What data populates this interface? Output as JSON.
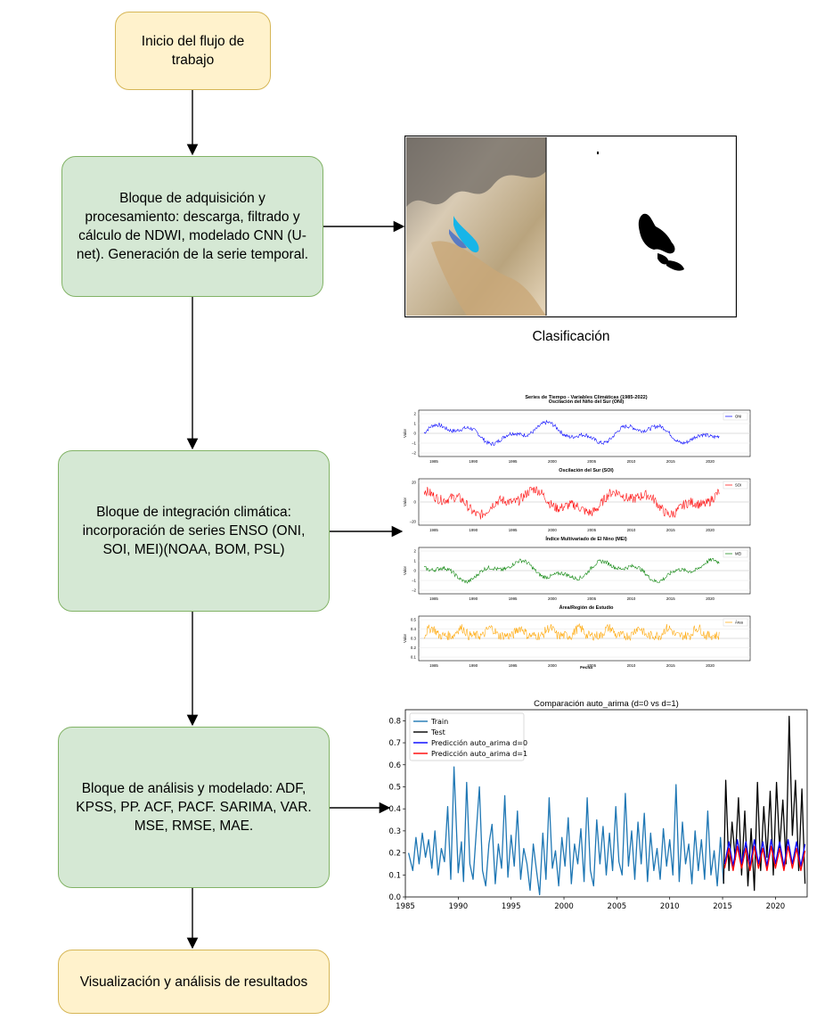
{
  "nodes": {
    "start": "Inicio del flujo de trabajo",
    "acquisition": "Bloque de adquisición y procesamiento: descarga, filtrado y cálculo de NDWI, modelado CNN (U-net). Generación de la serie temporal.",
    "climate": "Bloque de integración climática: incorporación de series ENSO (ONI, SOI, MEI)(NOAA, BOM, PSL)",
    "analysis": "Bloque de análisis y modelado: ADF, KPSS, PP. ACF, PACF. SARIMA, VAR. MSE, RMSE, MAE.",
    "results": "Visualización y análisis de resultados"
  },
  "classification": {
    "caption": "Clasificación"
  },
  "climate_figure": {
    "suptitle": "Series de Tiempo - Variables Climáticas (1985-2022)",
    "xlabel": "Fecha",
    "ylabel": "Valor",
    "x_ticks": [
      "1985",
      "1990",
      "1995",
      "2000",
      "2005",
      "2010",
      "2015",
      "2020"
    ],
    "panels": [
      {
        "title": "Oscilación del Niño del Sur (ONI)",
        "legend": "ONI",
        "color": "#0000ff",
        "yticks": [
          "2",
          "1",
          "0",
          "−1",
          "−2"
        ]
      },
      {
        "title": "Oscilación del Sur (SOI)",
        "legend": "SOI",
        "color": "#ff0000",
        "yticks": [
          "20",
          "0",
          "−20"
        ]
      },
      {
        "title": "Índice Multivariado de El Nino (MEI)",
        "legend": "MEI",
        "color": "#008000",
        "yticks": [
          "2",
          "1",
          "0",
          "−1",
          "−2"
        ]
      },
      {
        "title": "Área/Región de Estudio",
        "legend": "Área",
        "color": "#ffa500",
        "yticks": [
          "0.5",
          "0.4",
          "0.3",
          "0.2",
          "0.1"
        ]
      }
    ]
  },
  "chart_data": {
    "type": "line",
    "title": "Comparación auto_arima (d=0 vs d=1)",
    "xlabel": "",
    "ylabel": "",
    "xlim": [
      1985,
      2023
    ],
    "ylim": [
      0.0,
      0.85
    ],
    "x_ticks": [
      "1985",
      "1990",
      "1995",
      "2000",
      "2005",
      "2010",
      "2015",
      "2020"
    ],
    "y_ticks": [
      "0.0",
      "0.1",
      "0.2",
      "0.3",
      "0.4",
      "0.5",
      "0.6",
      "0.7",
      "0.8"
    ],
    "legend": "top-left",
    "series": [
      {
        "name": "Train",
        "color": "#1f77b4",
        "x": [
          1985.3,
          1985.7,
          1986.0,
          1986.3,
          1986.6,
          1986.9,
          1987.2,
          1987.5,
          1987.8,
          1988.1,
          1988.4,
          1988.7,
          1989.0,
          1989.3,
          1989.6,
          1990.0,
          1990.3,
          1990.5,
          1990.8,
          1991.1,
          1991.4,
          1991.7,
          1992.0,
          1992.3,
          1992.6,
          1992.9,
          1993.2,
          1993.5,
          1993.8,
          1994.1,
          1994.4,
          1994.7,
          1995.0,
          1995.3,
          1995.6,
          1995.9,
          1996.2,
          1996.5,
          1996.8,
          1997.1,
          1997.4,
          1997.7,
          1998.0,
          1998.3,
          1998.6,
          1998.9,
          1999.2,
          1999.5,
          1999.8,
          2000.1,
          2000.4,
          2000.7,
          2001.0,
          2001.3,
          2001.6,
          2001.9,
          2002.2,
          2002.5,
          2002.8,
          2003.1,
          2003.4,
          2003.7,
          2004.0,
          2004.3,
          2004.6,
          2004.9,
          2005.2,
          2005.5,
          2005.8,
          2006.1,
          2006.4,
          2006.7,
          2007.0,
          2007.3,
          2007.6,
          2007.9,
          2008.2,
          2008.5,
          2008.8,
          2009.1,
          2009.4,
          2009.7,
          2010.0,
          2010.3,
          2010.6,
          2010.9,
          2011.2,
          2011.5,
          2011.8,
          2012.1,
          2012.4,
          2012.7,
          2013.0,
          2013.3,
          2013.6,
          2013.9,
          2014.2,
          2014.5,
          2014.8,
          2015.1
        ],
        "values": [
          0.2,
          0.12,
          0.27,
          0.15,
          0.29,
          0.18,
          0.26,
          0.13,
          0.3,
          0.1,
          0.22,
          0.16,
          0.41,
          0.08,
          0.59,
          0.11,
          0.25,
          0.07,
          0.52,
          0.15,
          0.08,
          0.29,
          0.5,
          0.12,
          0.05,
          0.24,
          0.33,
          0.06,
          0.24,
          0.13,
          0.46,
          0.09,
          0.28,
          0.14,
          0.39,
          0.08,
          0.22,
          0.15,
          0.03,
          0.24,
          0.12,
          0.01,
          0.29,
          0.08,
          0.45,
          0.13,
          0.21,
          0.05,
          0.27,
          0.14,
          0.36,
          0.06,
          0.24,
          0.15,
          0.31,
          0.07,
          0.45,
          0.12,
          0.05,
          0.35,
          0.15,
          0.32,
          0.1,
          0.29,
          0.12,
          0.41,
          0.16,
          0.1,
          0.47,
          0.14,
          0.3,
          0.08,
          0.34,
          0.15,
          0.38,
          0.07,
          0.29,
          0.12,
          0.22,
          0.08,
          0.31,
          0.14,
          0.26,
          0.1,
          0.51,
          0.07,
          0.34,
          0.15,
          0.24,
          0.06,
          0.3,
          0.12,
          0.26,
          0.08,
          0.39,
          0.1,
          0.21,
          0.05,
          0.27,
          0.06
        ]
      },
      {
        "name": "Test",
        "color": "#000000",
        "x": [
          2015.1,
          2015.3,
          2015.6,
          2015.9,
          2016.2,
          2016.5,
          2016.8,
          2017.1,
          2017.4,
          2017.7,
          2018.0,
          2018.3,
          2018.6,
          2018.9,
          2019.2,
          2019.5,
          2019.8,
          2020.1,
          2020.4,
          2020.7,
          2021.0,
          2021.3,
          2021.6,
          2021.9,
          2022.2,
          2022.5,
          2022.8
        ],
        "values": [
          0.06,
          0.53,
          0.12,
          0.34,
          0.17,
          0.45,
          0.1,
          0.39,
          0.05,
          0.31,
          0.03,
          0.52,
          0.12,
          0.41,
          0.18,
          0.48,
          0.1,
          0.52,
          0.22,
          0.44,
          0.15,
          0.82,
          0.28,
          0.53,
          0.12,
          0.49,
          0.06
        ]
      },
      {
        "name": "Predicción auto_arima d=0",
        "color": "#0000ff",
        "x": [
          2015.2,
          2015.6,
          2016.0,
          2016.4,
          2016.8,
          2017.2,
          2017.6,
          2018.0,
          2018.4,
          2018.8,
          2019.2,
          2019.6,
          2020.0,
          2020.4,
          2020.8,
          2021.2,
          2021.6,
          2022.0,
          2022.4,
          2022.8
        ],
        "values": [
          0.15,
          0.25,
          0.14,
          0.26,
          0.15,
          0.25,
          0.14,
          0.26,
          0.15,
          0.25,
          0.14,
          0.26,
          0.15,
          0.25,
          0.14,
          0.26,
          0.15,
          0.25,
          0.14,
          0.24
        ]
      },
      {
        "name": "Predicción auto_arima d=1",
        "color": "#ff0000",
        "x": [
          2015.2,
          2015.6,
          2016.0,
          2016.4,
          2016.8,
          2017.2,
          2017.6,
          2018.0,
          2018.4,
          2018.8,
          2019.2,
          2019.6,
          2020.0,
          2020.4,
          2020.8,
          2021.2,
          2021.6,
          2022.0,
          2022.4,
          2022.8
        ],
        "values": [
          0.13,
          0.22,
          0.12,
          0.23,
          0.13,
          0.22,
          0.12,
          0.23,
          0.13,
          0.22,
          0.12,
          0.23,
          0.13,
          0.22,
          0.12,
          0.23,
          0.13,
          0.22,
          0.12,
          0.21
        ]
      }
    ]
  }
}
